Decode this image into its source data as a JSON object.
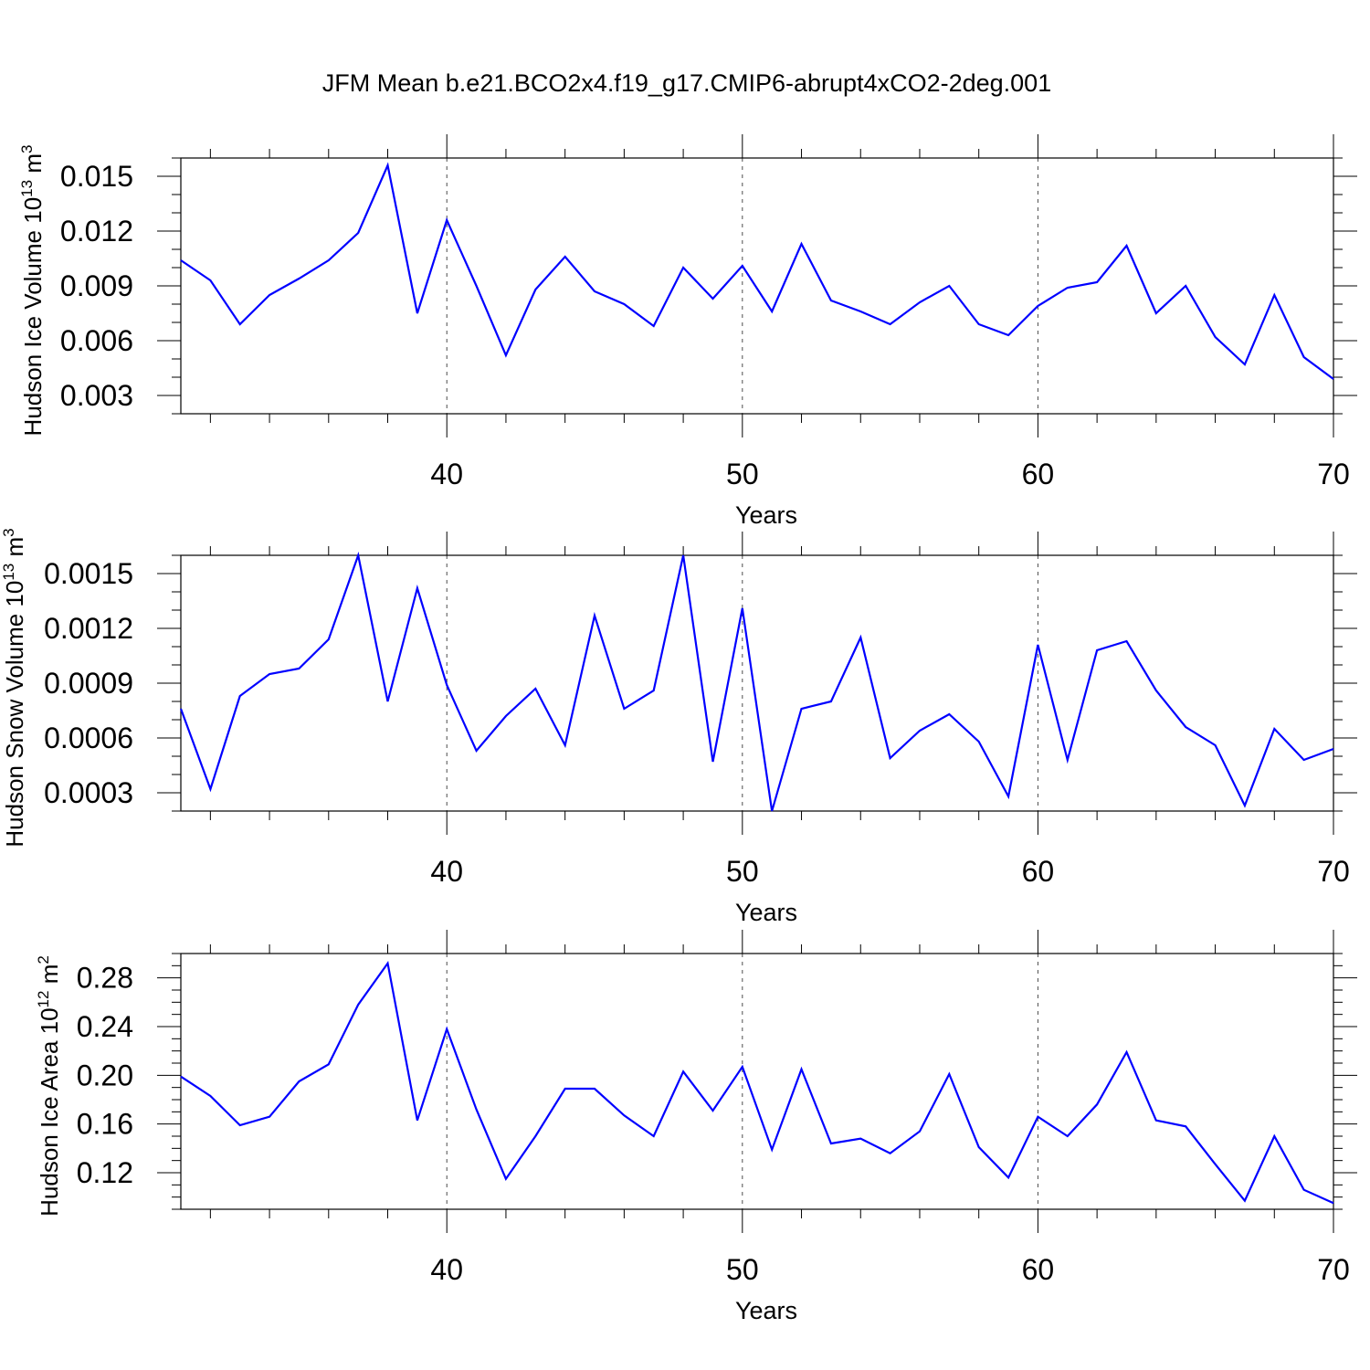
{
  "title": "JFM Mean b.e21.BCO2x4.f19_g17.CMIP6-abrupt4xCO2-2deg.001",
  "colors": {
    "line": "#0000ff",
    "axis": "#000000",
    "background": "#ffffff"
  },
  "chart_data": [
    {
      "type": "line",
      "ylabel": "Hudson Ice Volume 10",
      "ylabel_exp": "13",
      "ylabel_unit": " m",
      "ylabel_unit_exp": "3",
      "xlabel": "Years",
      "xlim": [
        31,
        70
      ],
      "ylim": [
        0.002,
        0.016
      ],
      "xticks": [
        40,
        50,
        60,
        70
      ],
      "xtick_labels": [
        "40",
        "50",
        "60",
        "70"
      ],
      "yticks": [
        0.003,
        0.006,
        0.009,
        0.012,
        0.015
      ],
      "ytick_labels": [
        "0.003",
        "0.006",
        "0.009",
        "0.012",
        "0.015"
      ],
      "y_minor_step": 0.001,
      "grid": "dashed vertical at major x ticks",
      "x": [
        31,
        32,
        33,
        34,
        35,
        36,
        37,
        38,
        39,
        40,
        41,
        42,
        43,
        44,
        45,
        46,
        47,
        48,
        49,
        50,
        51,
        52,
        53,
        54,
        55,
        56,
        57,
        58,
        59,
        60,
        61,
        62,
        63,
        64,
        65,
        66,
        67,
        68,
        69,
        70
      ],
      "values": [
        0.0104,
        0.0093,
        0.0069,
        0.0085,
        0.0094,
        0.0104,
        0.0119,
        0.0156,
        0.0075,
        0.0126,
        0.009,
        0.0052,
        0.0088,
        0.0106,
        0.0087,
        0.008,
        0.0068,
        0.01,
        0.0083,
        0.0101,
        0.0076,
        0.0113,
        0.0082,
        0.0076,
        0.0069,
        0.0081,
        0.009,
        0.0069,
        0.0063,
        0.0079,
        0.0089,
        0.0092,
        0.0112,
        0.0075,
        0.009,
        0.0062,
        0.0047,
        0.0085,
        0.0051,
        0.0039
      ]
    },
    {
      "type": "line",
      "ylabel": "Hudson Snow Volume 10",
      "ylabel_exp": "13",
      "ylabel_unit": " m",
      "ylabel_unit_exp": "3",
      "xlabel": "Years",
      "xlim": [
        31,
        70
      ],
      "ylim": [
        0.0002,
        0.0016
      ],
      "xticks": [
        40,
        50,
        60,
        70
      ],
      "xtick_labels": [
        "40",
        "50",
        "60",
        "70"
      ],
      "yticks": [
        0.0003,
        0.0006,
        0.0009,
        0.0012,
        0.0015
      ],
      "ytick_labels": [
        "0.0003",
        "0.0006",
        "0.0009",
        "0.0012",
        "0.0015"
      ],
      "y_minor_step": 0.0001,
      "grid": "dashed vertical at major x ticks",
      "x": [
        31,
        32,
        33,
        34,
        35,
        36,
        37,
        38,
        39,
        40,
        41,
        42,
        43,
        44,
        45,
        46,
        47,
        48,
        49,
        50,
        51,
        52,
        53,
        54,
        55,
        56,
        57,
        58,
        59,
        60,
        61,
        62,
        63,
        64,
        65,
        66,
        67,
        68,
        69,
        70
      ],
      "values": [
        0.00076,
        0.00032,
        0.00083,
        0.00095,
        0.00098,
        0.00114,
        0.0016,
        0.0008,
        0.00142,
        0.00089,
        0.00053,
        0.00072,
        0.00087,
        0.00056,
        0.00127,
        0.00076,
        0.00086,
        0.0016,
        0.00047,
        0.00131,
        0.0002,
        0.00076,
        0.0008,
        0.00115,
        0.00049,
        0.00064,
        0.00073,
        0.00058,
        0.00028,
        0.00111,
        0.00048,
        0.00108,
        0.00113,
        0.00086,
        0.00066,
        0.00056,
        0.00023,
        0.00065,
        0.00048,
        0.00054
      ]
    },
    {
      "type": "line",
      "ylabel": "Hudson Ice Area 10",
      "ylabel_exp": "12",
      "ylabel_unit": " m",
      "ylabel_unit_exp": "2",
      "xlabel": "Years",
      "xlim": [
        31,
        70
      ],
      "ylim": [
        0.09,
        0.3
      ],
      "xticks": [
        40,
        50,
        60,
        70
      ],
      "xtick_labels": [
        "40",
        "50",
        "60",
        "70"
      ],
      "yticks": [
        0.12,
        0.16,
        0.2,
        0.24,
        0.28
      ],
      "ytick_labels": [
        "0.12",
        "0.16",
        "0.20",
        "0.24",
        "0.28"
      ],
      "y_minor_step": 0.01,
      "grid": "dashed vertical at major x ticks",
      "x": [
        31,
        32,
        33,
        34,
        35,
        36,
        37,
        38,
        39,
        40,
        41,
        42,
        43,
        44,
        45,
        46,
        47,
        48,
        49,
        50,
        51,
        52,
        53,
        54,
        55,
        56,
        57,
        58,
        59,
        60,
        61,
        62,
        63,
        64,
        65,
        66,
        67,
        68,
        69,
        70
      ],
      "values": [
        0.199,
        0.183,
        0.159,
        0.166,
        0.195,
        0.209,
        0.258,
        0.292,
        0.163,
        0.238,
        0.172,
        0.115,
        0.15,
        0.189,
        0.189,
        0.167,
        0.15,
        0.203,
        0.171,
        0.207,
        0.139,
        0.205,
        0.144,
        0.148,
        0.136,
        0.154,
        0.201,
        0.141,
        0.116,
        0.166,
        0.15,
        0.176,
        0.219,
        0.163,
        0.158,
        0.127,
        0.097,
        0.15,
        0.106,
        0.095
      ]
    }
  ]
}
